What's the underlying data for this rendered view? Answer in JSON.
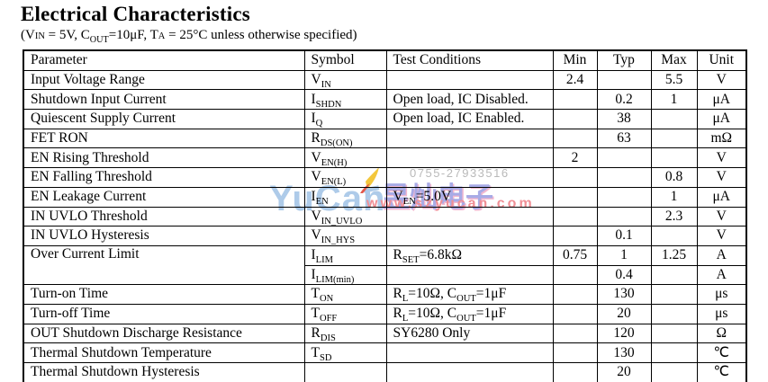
{
  "page": {
    "title": "Electrical Characteristics",
    "subtitle_segments": [
      [
        "t",
        "(V"
      ],
      [
        "c",
        "IN"
      ],
      [
        "t",
        " = 5V, C"
      ],
      [
        "s",
        "OUT"
      ],
      [
        "t",
        "=10μF, T"
      ],
      [
        "c",
        "A"
      ],
      [
        "t",
        " = 25°C unless otherwise specified)"
      ]
    ]
  },
  "watermark": {
    "logo_text": "YuCan",
    "chinese_text": "昱灿电子",
    "url": "www.szyucan.com",
    "phone": "0755-27933516",
    "logo_color": "#aecbe9",
    "chinese_color": "#a8abe6",
    "url_color": "#f08f95",
    "phone_color": "#b9b9b9",
    "swoosh_colors": [
      "#f3c73c",
      "#e4584a"
    ]
  },
  "table": {
    "headers": {
      "parameter": "Parameter",
      "symbol": "Symbol",
      "conditions": "Test Conditions",
      "min": "Min",
      "typ": "Typ",
      "max": "Max",
      "unit": "Unit"
    },
    "rows": [
      {
        "parameter": "Input Voltage Range",
        "symbol": [
          [
            "t",
            "V"
          ],
          [
            "s",
            "IN"
          ]
        ],
        "conditions": [],
        "min": "2.4",
        "typ": "",
        "max": "5.5",
        "unit": "V"
      },
      {
        "parameter": "Shutdown Input Current",
        "symbol": [
          [
            "t",
            "I"
          ],
          [
            "s",
            "SHDN"
          ]
        ],
        "conditions": [
          [
            "t",
            "Open load, IC Disabled."
          ]
        ],
        "min": "",
        "typ": "0.2",
        "max": "1",
        "unit": "μA"
      },
      {
        "parameter": "Quiescent Supply Current",
        "symbol": [
          [
            "t",
            "I"
          ],
          [
            "s",
            "Q"
          ]
        ],
        "conditions": [
          [
            "t",
            "Open load, IC Enabled."
          ]
        ],
        "min": "",
        "typ": "38",
        "max": "",
        "unit": "μA"
      },
      {
        "parameter": "FET RON",
        "symbol": [
          [
            "t",
            "R"
          ],
          [
            "s",
            "DS(ON)"
          ]
        ],
        "conditions": [],
        "min": "",
        "typ": "63",
        "max": "",
        "unit": "mΩ"
      },
      {
        "parameter": "EN Rising Threshold",
        "symbol": [
          [
            "t",
            "V"
          ],
          [
            "s",
            "EN(H)"
          ]
        ],
        "conditions": [],
        "min": "2",
        "typ": "",
        "max": "",
        "unit": "V"
      },
      {
        "parameter": "EN Falling Threshold",
        "symbol": [
          [
            "t",
            "V"
          ],
          [
            "s",
            "EN(L)"
          ]
        ],
        "conditions": [],
        "min": "",
        "typ": "",
        "max": "0.8",
        "unit": "V"
      },
      {
        "parameter": "EN Leakage Current",
        "symbol": [
          [
            "t",
            "I"
          ],
          [
            "s",
            "EN"
          ]
        ],
        "conditions": [
          [
            "t",
            "V"
          ],
          [
            "s",
            "EN"
          ],
          [
            "t",
            "=5.0V"
          ]
        ],
        "min": "",
        "typ": "",
        "max": "1",
        "unit": "μA"
      },
      {
        "parameter": "IN UVLO Threshold",
        "symbol": [
          [
            "t",
            "V"
          ],
          [
            "s",
            "IN_UVLO"
          ]
        ],
        "conditions": [],
        "min": "",
        "typ": "",
        "max": "2.3",
        "unit": "V"
      },
      {
        "parameter": "IN UVLO Hysteresis",
        "symbol": [
          [
            "t",
            "V"
          ],
          [
            "s",
            "IN_HYS"
          ]
        ],
        "conditions": [],
        "min": "",
        "typ": "0.1",
        "max": "",
        "unit": "V"
      },
      {
        "parameter": "Over Current Limit",
        "symbol": [
          [
            "t",
            "I"
          ],
          [
            "s",
            "LIM"
          ]
        ],
        "conditions": [
          [
            "t",
            "R"
          ],
          [
            "s",
            "SET"
          ],
          [
            "t",
            "=6.8kΩ"
          ]
        ],
        "min": "0.75",
        "typ": "1",
        "max": "1.25",
        "unit": "A"
      },
      {
        "parameter": "",
        "symbol": [
          [
            "t",
            "I"
          ],
          [
            "s",
            "LIM(min)"
          ]
        ],
        "conditions": [],
        "min": "",
        "typ": "0.4",
        "max": "",
        "unit": "A"
      },
      {
        "parameter": "Turn-on Time",
        "symbol": [
          [
            "t",
            "T"
          ],
          [
            "s",
            "ON"
          ]
        ],
        "conditions": [
          [
            "t",
            "R"
          ],
          [
            "s",
            "L"
          ],
          [
            "t",
            "=10Ω, C"
          ],
          [
            "s",
            "OUT"
          ],
          [
            "t",
            "=1μF"
          ]
        ],
        "min": "",
        "typ": "130",
        "max": "",
        "unit": "μs"
      },
      {
        "parameter": "Turn-off Time",
        "symbol": [
          [
            "t",
            "T"
          ],
          [
            "s",
            "OFF"
          ]
        ],
        "conditions": [
          [
            "t",
            "R"
          ],
          [
            "s",
            "L"
          ],
          [
            "t",
            "=10Ω, C"
          ],
          [
            "s",
            "OUT"
          ],
          [
            "t",
            "=1μF"
          ]
        ],
        "min": "",
        "typ": "20",
        "max": "",
        "unit": "μs"
      },
      {
        "parameter": "OUT Shutdown Discharge Resistance",
        "symbol": [
          [
            "t",
            "R"
          ],
          [
            "s",
            "DIS"
          ]
        ],
        "conditions": [
          [
            "t",
            "SY6280 Only"
          ]
        ],
        "min": "",
        "typ": "120",
        "max": "",
        "unit": "Ω"
      },
      {
        "parameter": "Thermal Shutdown Temperature",
        "symbol": [
          [
            "t",
            "T"
          ],
          [
            "s",
            "SD"
          ]
        ],
        "conditions": [],
        "min": "",
        "typ": "130",
        "max": "",
        "unit": "℃"
      },
      {
        "parameter": "Thermal Shutdown Hysteresis",
        "symbol": [],
        "conditions": [],
        "min": "",
        "typ": "20",
        "max": "",
        "unit": "℃"
      }
    ]
  }
}
